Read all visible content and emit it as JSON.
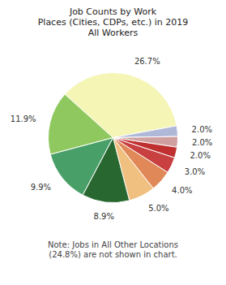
{
  "chart_data": {
    "type": "pie",
    "title": "Job Counts by Work\nPlaces (Cities, CDPs, etc.) in 2019\nAll Workers",
    "annotations": [
      "Note: Jobs in All Other Locations\n(24.8%) are not shown in chart."
    ],
    "values": [
      26.7,
      2.0,
      2.0,
      2.0,
      3.0,
      4.0,
      5.0,
      8.9,
      9.9,
      11.9
    ],
    "value_labels": [
      "26.7%",
      "2.0%",
      "2.0%",
      "2.0%",
      "3.0%",
      "4.0%",
      "5.0%",
      "8.9%",
      "9.9%",
      "11.9%"
    ],
    "colors": [
      "#f5f5b5",
      "#b0b8d8",
      "#d0a0a0",
      "#c03030",
      "#c84040",
      "#e08858",
      "#f0c080",
      "#286830",
      "#48a068",
      "#90c860"
    ],
    "data_labels": true
  }
}
